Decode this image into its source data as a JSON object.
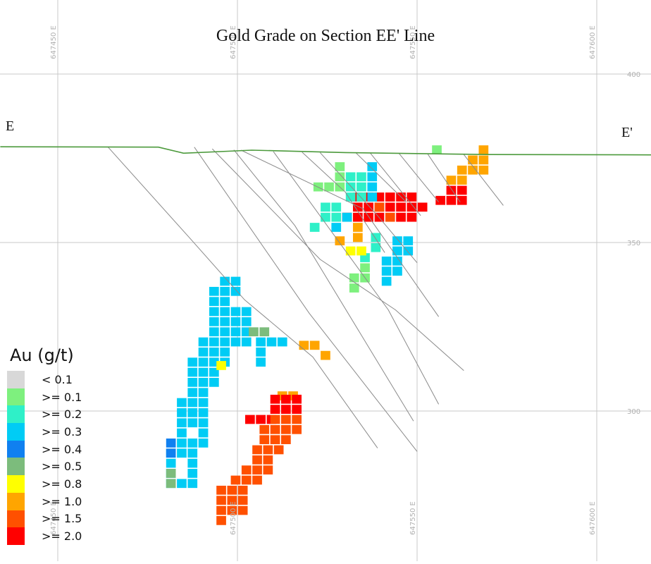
{
  "title": "Gold Grade on Section EE' Line",
  "labels": {
    "left_end": "E",
    "right_end": "E'"
  },
  "grid": {
    "easting_ticks": [
      {
        "value": 647450,
        "label": "647450 E"
      },
      {
        "value": 647500,
        "label": "647500 E"
      },
      {
        "value": 647550,
        "label": "647550 E"
      },
      {
        "value": 647600,
        "label": "647600 E"
      }
    ],
    "elevation_ticks": [
      {
        "value": 400,
        "label": "400"
      },
      {
        "value": 350,
        "label": "350"
      },
      {
        "value": 300,
        "label": "300"
      }
    ],
    "line_color": "#c8c8c8"
  },
  "topography": {
    "color": "#4c9a3c",
    "points": [
      [
        647434,
        378.4
      ],
      [
        647478,
        378.3
      ],
      [
        647485,
        376.5
      ],
      [
        647504,
        377.4
      ],
      [
        647530,
        376.7
      ],
      [
        647570,
        376.1
      ],
      [
        647618,
        376.0
      ]
    ]
  },
  "drillholes": {
    "color": "#8a8a8a",
    "traces": [
      [
        [
          647464,
          378.3
        ],
        [
          647487,
          351
        ],
        [
          647502,
          333
        ],
        [
          647521,
          316
        ],
        [
          647539,
          289
        ]
      ],
      [
        [
          647488,
          378.3
        ],
        [
          647520,
          329
        ],
        [
          647550,
          288
        ]
      ],
      [
        [
          647493,
          377.8
        ],
        [
          647523,
          345
        ],
        [
          647544,
          330
        ],
        [
          647563,
          312
        ]
      ],
      [
        [
          647499,
          377.5
        ],
        [
          647516,
          355
        ],
        [
          647549,
          297
        ]
      ],
      [
        [
          647501,
          377.4
        ],
        [
          647535,
          360
        ],
        [
          647556,
          328
        ]
      ],
      [
        [
          647510,
          377.0
        ],
        [
          647542,
          330
        ],
        [
          647556,
          302
        ]
      ],
      [
        [
          647518,
          376.8
        ],
        [
          647530,
          365
        ],
        [
          647541,
          347
        ]
      ],
      [
        [
          647523,
          376.7
        ],
        [
          647539,
          358
        ],
        [
          647550,
          344
        ]
      ],
      [
        [
          647533,
          376.6
        ],
        [
          647547,
          362
        ]
      ],
      [
        [
          647537,
          376.5
        ],
        [
          647551,
          358
        ]
      ],
      [
        [
          647545,
          376.4
        ],
        [
          647556,
          362
        ]
      ],
      [
        [
          647553,
          376.2
        ],
        [
          647562,
          362
        ]
      ],
      [
        [
          647563,
          376.1
        ],
        [
          647574,
          361
        ]
      ]
    ]
  },
  "grade_classes": [
    {
      "label": "< 0.1",
      "color": "#d8d8d8"
    },
    {
      "label": ">= 0.1",
      "color": "#7ef07e"
    },
    {
      "label": ">= 0.2",
      "color": "#2ff0c8"
    },
    {
      "label": ">= 0.3",
      "color": "#00ccf5"
    },
    {
      "label": ">= 0.4",
      "color": "#1080f0"
    },
    {
      "label": ">= 0.5",
      "color": "#7cbc7c"
    },
    {
      "label": ">= 0.8",
      "color": "#ffff00"
    },
    {
      "label": ">= 1.0",
      "color": "#ffa500"
    },
    {
      "label": ">= 1.5",
      "color": "#ff5000"
    },
    {
      "label": ">= 2.0",
      "color": "#ff0000"
    }
  ],
  "legend": {
    "title": "Au (g/t)"
  },
  "blocks": [
    {
      "grade": ">= 1.0",
      "cells": [
        [
          647568.5,
          377.5
        ],
        [
          647565.5,
          374.5
        ],
        [
          647568.5,
          374.5
        ],
        [
          647562.5,
          371.5
        ],
        [
          647565.5,
          371.5
        ],
        [
          647568.5,
          371.5
        ],
        [
          647559.5,
          368.5
        ],
        [
          647562.5,
          368.5
        ],
        [
          647518.5,
          319.5
        ],
        [
          647521.5,
          319.5
        ],
        [
          647524.5,
          316.5
        ],
        [
          647512.5,
          304.5
        ],
        [
          647515.5,
          304.5
        ],
        [
          647528.5,
          350.5
        ],
        [
          647533.5,
          354.5
        ],
        [
          647533.5,
          351.5
        ]
      ]
    },
    {
      "grade": ">= 2.0",
      "cells": [
        [
          647559.5,
          365.5
        ],
        [
          647562.5,
          365.5
        ],
        [
          647556.5,
          362.5
        ],
        [
          647559.5,
          362.5
        ],
        [
          647562.5,
          362.5
        ],
        [
          647533.5,
          363.5
        ],
        [
          647536.5,
          363.5
        ],
        [
          647539.5,
          363.5
        ],
        [
          647542.5,
          363.5
        ],
        [
          647545.5,
          363.5
        ],
        [
          647548.5,
          363.5
        ],
        [
          647533.5,
          360.5
        ],
        [
          647536.5,
          360.5
        ],
        [
          647539.5,
          360.5
        ],
        [
          647542.5,
          360.5
        ],
        [
          647545.5,
          360.5
        ],
        [
          647548.5,
          360.5
        ],
        [
          647551.5,
          360.5
        ],
        [
          647530.5,
          357.5
        ],
        [
          647533.5,
          357.5
        ],
        [
          647536.5,
          357.5
        ],
        [
          647539.5,
          357.5
        ],
        [
          647545.5,
          357.5
        ],
        [
          647548.5,
          357.5
        ],
        [
          647510.5,
          303.5
        ],
        [
          647513.5,
          303.5
        ],
        [
          647516.5,
          303.5
        ],
        [
          647510.5,
          300.5
        ],
        [
          647513.5,
          300.5
        ],
        [
          647516.5,
          300.5
        ],
        [
          647503.5,
          297.5
        ],
        [
          647506.5,
          297.5
        ],
        [
          647509.5,
          297.5
        ]
      ]
    },
    {
      "grade": ">= 1.5",
      "cells": [
        [
          647539.5,
          360.5
        ],
        [
          647542.5,
          357.5
        ],
        [
          647510.5,
          297.5
        ],
        [
          647513.5,
          297.5
        ],
        [
          647516.5,
          297.5
        ],
        [
          647507.5,
          294.5
        ],
        [
          647510.5,
          294.5
        ],
        [
          647513.5,
          294.5
        ],
        [
          647516.5,
          294.5
        ],
        [
          647507.5,
          291.5
        ],
        [
          647510.5,
          291.5
        ],
        [
          647513.5,
          291.5
        ],
        [
          647505.5,
          288.5
        ],
        [
          647508.5,
          288.5
        ],
        [
          647511.5,
          288.5
        ],
        [
          647505.5,
          285.5
        ],
        [
          647508.5,
          285.5
        ],
        [
          647502.5,
          282.5
        ],
        [
          647505.5,
          282.5
        ],
        [
          647508.5,
          282.5
        ],
        [
          647499.5,
          279.5
        ],
        [
          647502.5,
          279.5
        ],
        [
          647505.5,
          279.5
        ],
        [
          647495.5,
          276.5
        ],
        [
          647498.5,
          276.5
        ],
        [
          647501.5,
          276.5
        ],
        [
          647495.5,
          273.5
        ],
        [
          647498.5,
          273.5
        ],
        [
          647501.5,
          273.5
        ],
        [
          647495.5,
          270.5
        ],
        [
          647498.5,
          270.5
        ],
        [
          647501.5,
          270.5
        ],
        [
          647495.5,
          267.5
        ]
      ]
    },
    {
      "grade": ">= 0.3",
      "cells": [
        [
          647537.5,
          372.5
        ],
        [
          647537.5,
          369.5
        ],
        [
          647537.5,
          366.5
        ],
        [
          647537.5,
          363.5
        ],
        [
          647530.5,
          357.5
        ],
        [
          647527.5,
          354.5
        ],
        [
          647544.5,
          350.5
        ],
        [
          647547.5,
          350.5
        ],
        [
          647544.5,
          347.5
        ],
        [
          647547.5,
          347.5
        ],
        [
          647541.5,
          344.5
        ],
        [
          647544.5,
          344.5
        ],
        [
          647541.5,
          341.5
        ],
        [
          647544.5,
          341.5
        ],
        [
          647541.5,
          338.5
        ],
        [
          647496.5,
          338.5
        ],
        [
          647499.5,
          338.5
        ],
        [
          647493.5,
          335.5
        ],
        [
          647496.5,
          335.5
        ],
        [
          647499.5,
          335.5
        ],
        [
          647493.5,
          332.5
        ],
        [
          647496.5,
          332.5
        ],
        [
          647493.5,
          329.5
        ],
        [
          647496.5,
          329.5
        ],
        [
          647499.5,
          329.5
        ],
        [
          647502.5,
          329.5
        ],
        [
          647493.5,
          326.5
        ],
        [
          647496.5,
          326.5
        ],
        [
          647499.5,
          326.5
        ],
        [
          647502.5,
          326.5
        ],
        [
          647493.5,
          323.5
        ],
        [
          647496.5,
          323.5
        ],
        [
          647499.5,
          323.5
        ],
        [
          647502.5,
          323.5
        ],
        [
          647490.5,
          320.5
        ],
        [
          647493.5,
          320.5
        ],
        [
          647496.5,
          320.5
        ],
        [
          647499.5,
          320.5
        ],
        [
          647502.5,
          320.5
        ],
        [
          647490.5,
          317.5
        ],
        [
          647493.5,
          317.5
        ],
        [
          647496.5,
          317.5
        ],
        [
          647487.5,
          314.5
        ],
        [
          647490.5,
          314.5
        ],
        [
          647493.5,
          314.5
        ],
        [
          647496.5,
          314.5
        ],
        [
          647487.5,
          311.5
        ],
        [
          647490.5,
          311.5
        ],
        [
          647493.5,
          311.5
        ],
        [
          647487.5,
          308.5
        ],
        [
          647490.5,
          308.5
        ],
        [
          647493.5,
          308.5
        ],
        [
          647487.5,
          305.5
        ],
        [
          647490.5,
          305.5
        ],
        [
          647484.5,
          302.5
        ],
        [
          647487.5,
          302.5
        ],
        [
          647490.5,
          302.5
        ],
        [
          647484.5,
          299.5
        ],
        [
          647487.5,
          299.5
        ],
        [
          647490.5,
          299.5
        ],
        [
          647484.5,
          296.5
        ],
        [
          647487.5,
          296.5
        ],
        [
          647490.5,
          296.5
        ],
        [
          647484.5,
          293.5
        ],
        [
          647490.5,
          293.5
        ],
        [
          647484.5,
          290.5
        ],
        [
          647487.5,
          290.5
        ],
        [
          647490.5,
          290.5
        ],
        [
          647481.5,
          287.5
        ],
        [
          647484.5,
          287.5
        ],
        [
          647487.5,
          287.5
        ],
        [
          647481.5,
          284.5
        ],
        [
          647487.5,
          284.5
        ],
        [
          647481.5,
          281.5
        ],
        [
          647487.5,
          281.5
        ],
        [
          647481.5,
          278.5
        ],
        [
          647484.5,
          278.5
        ],
        [
          647487.5,
          278.5
        ],
        [
          647506.5,
          320.5
        ],
        [
          647509.5,
          320.5
        ],
        [
          647512.5,
          320.5
        ],
        [
          647506.5,
          317.5
        ],
        [
          647506.5,
          314.5
        ]
      ]
    },
    {
      "grade": ">= 0.2",
      "cells": [
        [
          647531.5,
          369.5
        ],
        [
          647534.5,
          369.5
        ],
        [
          647531.5,
          366.5
        ],
        [
          647534.5,
          366.5
        ],
        [
          647531.5,
          363.5
        ],
        [
          647534.5,
          363.5
        ],
        [
          647524.5,
          360.5
        ],
        [
          647527.5,
          360.5
        ],
        [
          647524.5,
          357.5
        ],
        [
          647527.5,
          357.5
        ],
        [
          647521.5,
          354.5
        ],
        [
          647538.5,
          351.5
        ],
        [
          647538.5,
          348.5
        ],
        [
          647535.5,
          345.5
        ]
      ]
    },
    {
      "grade": ">= 0.1",
      "cells": [
        [
          647528.5,
          372.5
        ],
        [
          647528.5,
          369.5
        ],
        [
          647522.5,
          366.5
        ],
        [
          647525.5,
          366.5
        ],
        [
          647528.5,
          366.5
        ],
        [
          647535.5,
          342.5
        ],
        [
          647532.5,
          339.5
        ],
        [
          647535.5,
          339.5
        ],
        [
          647532.5,
          336.5
        ],
        [
          647555.5,
          377.5
        ]
      ]
    },
    {
      "grade": ">= 0.8",
      "cells": [
        [
          647531.5,
          347.5
        ],
        [
          647534.5,
          347.5
        ],
        [
          647495.5,
          313.5
        ]
      ]
    },
    {
      "grade": ">= 0.5",
      "cells": [
        [
          647504.5,
          323.5
        ],
        [
          647507.5,
          323.5
        ],
        [
          647481.5,
          281.5
        ],
        [
          647481.5,
          278.5
        ]
      ]
    },
    {
      "grade": ">= 0.4",
      "cells": [
        [
          647481.5,
          290.5
        ],
        [
          647481.5,
          287.5
        ]
      ]
    }
  ]
}
